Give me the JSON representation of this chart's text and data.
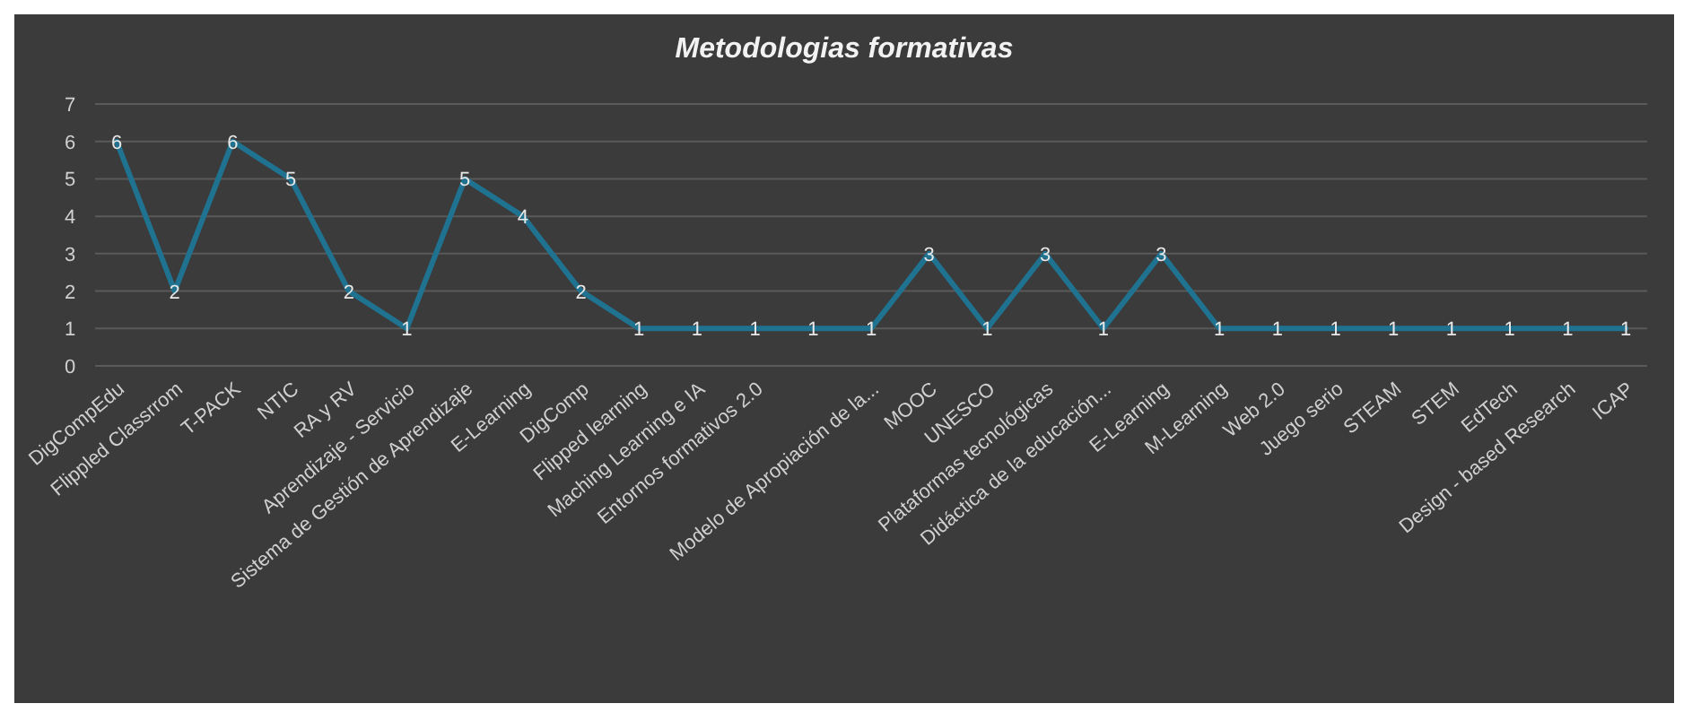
{
  "chart_data": {
    "type": "line",
    "title": "Metodologias formativas",
    "categories": [
      "DigCompEdu",
      "Flippled Classrrom",
      "T-PACK",
      "NTIC",
      "RA y RV",
      "Aprendizaje - Servicio",
      "Sistema de Gestión de Aprendizaje",
      "E-Learning",
      "DigComp",
      "Flipped learning",
      "Maching Learning e IA",
      "Entornos formativos 2.0",
      null,
      "Modelo de Apropiación de la...",
      "MOOC",
      "UNESCO",
      "Plataformas tecnológicas",
      "Didáctica de la educación...",
      "E-Learning",
      "M-Learning",
      "Web 2.0",
      "Juego serio",
      "STEAM",
      "STEM",
      "EdTech",
      "Design - based Research",
      "ICAP"
    ],
    "series": [
      {
        "color": "#1f7391",
        "values": [
          6,
          2,
          6,
          5,
          2,
          1,
          5,
          4,
          2,
          1,
          1,
          1,
          1,
          1,
          3,
          1,
          3,
          1,
          3,
          1,
          1,
          1,
          1,
          1,
          1,
          1,
          1
        ]
      }
    ],
    "ylim": [
      0,
      7
    ],
    "yticks": [
      0,
      1,
      2,
      3,
      4,
      5,
      6,
      7
    ],
    "grid": "y",
    "data_labels": true,
    "marker": "none",
    "line_style": "solid"
  }
}
